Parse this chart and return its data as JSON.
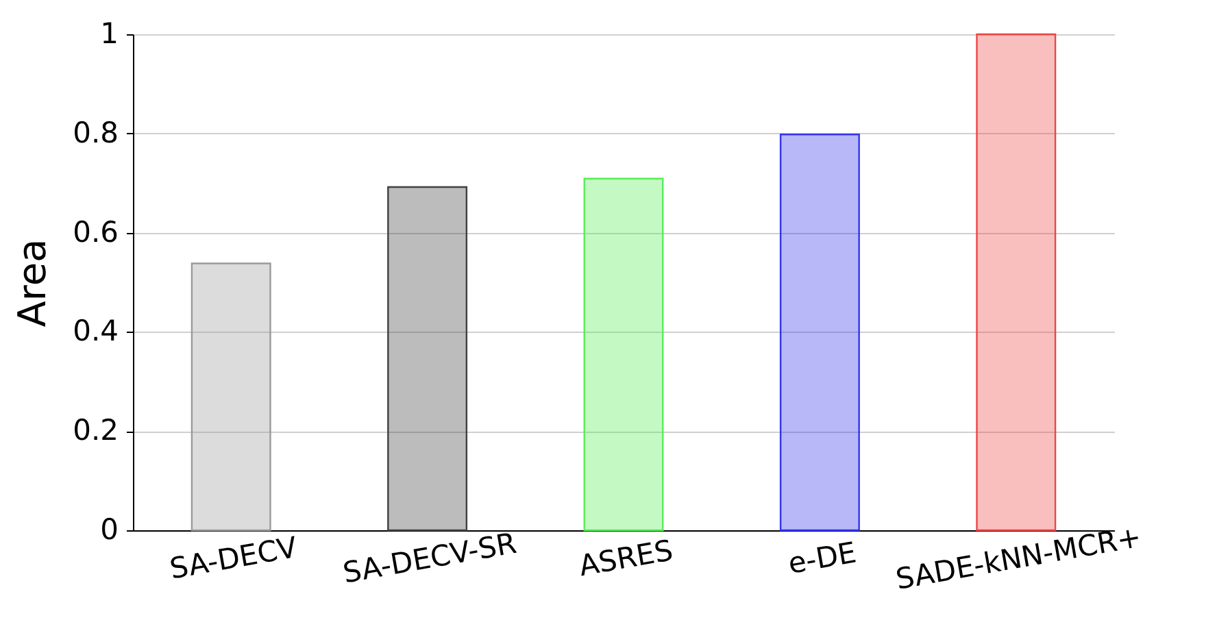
{
  "chart_data": {
    "type": "bar",
    "ylabel": "Area",
    "categories": [
      "SA-DECV",
      "SA-DECV-SR",
      "ASRES",
      "e-DE",
      "SADE-kNN-MCR+"
    ],
    "values": [
      0.538,
      0.692,
      0.709,
      0.798,
      1.0
    ],
    "colors": [
      "#9a9a9a",
      "#404040",
      "#55ee55",
      "#3333ee",
      "#ee4444"
    ],
    "ylim": [
      0,
      1
    ],
    "yticks": [
      0,
      0.2,
      0.4,
      0.6,
      0.8,
      1
    ],
    "grid": "y"
  }
}
